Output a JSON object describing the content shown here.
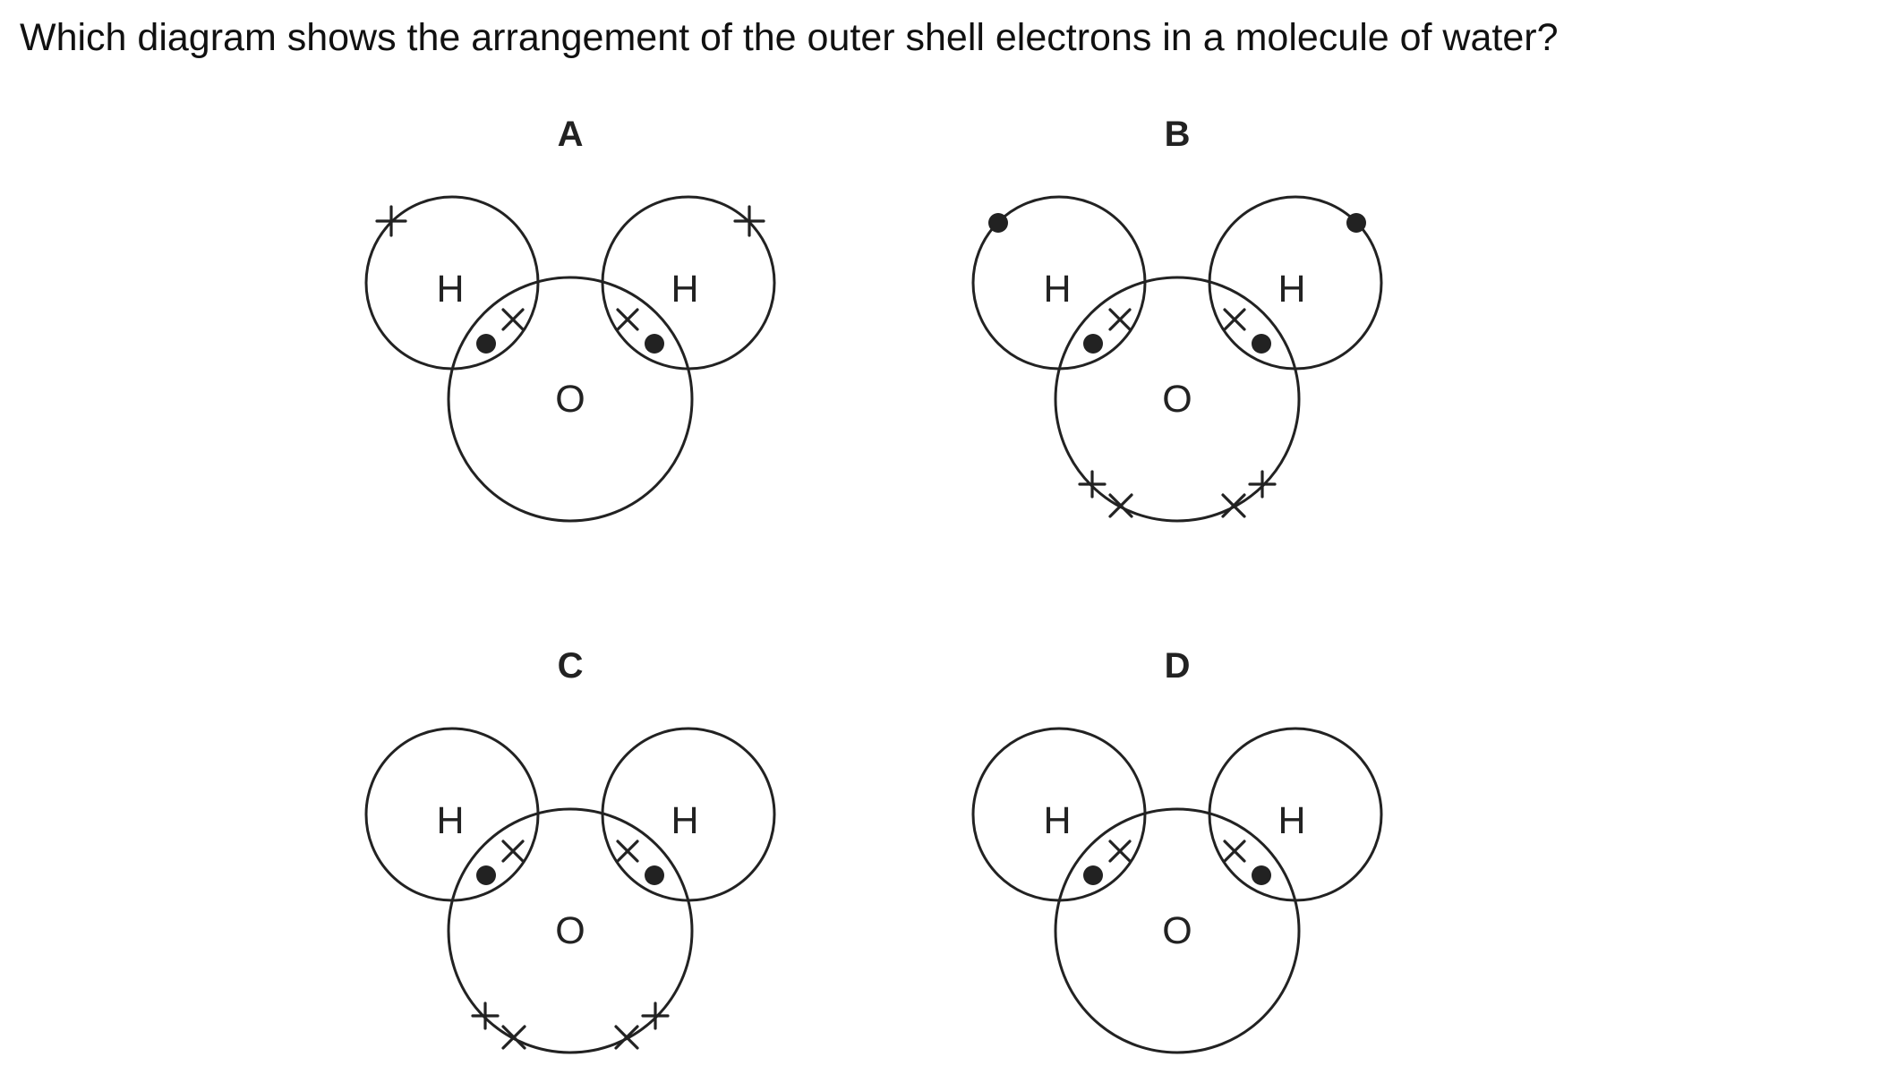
{
  "question": "Which diagram shows the arrangement of the outer shell electrons in a molecule of water?",
  "options": [
    {
      "letter": "A",
      "atom_labels": {
        "hydrogen_left": "H",
        "hydrogen_right": "H",
        "oxygen": "O"
      },
      "hydrogen_outer_electrons": "cross",
      "oxygen_lone_pairs": 0
    },
    {
      "letter": "B",
      "atom_labels": {
        "hydrogen_left": "H",
        "hydrogen_right": "H",
        "oxygen": "O"
      },
      "hydrogen_outer_electrons": "dot",
      "oxygen_lone_pairs": 2
    },
    {
      "letter": "C",
      "atom_labels": {
        "hydrogen_left": "H",
        "hydrogen_right": "H",
        "oxygen": "O"
      },
      "hydrogen_outer_electrons": "none",
      "oxygen_lone_pairs": 2
    },
    {
      "letter": "D",
      "atom_labels": {
        "hydrogen_left": "H",
        "hydrogen_right": "H",
        "oxygen": "O"
      },
      "hydrogen_outer_electrons": "none",
      "oxygen_lone_pairs": 0
    }
  ],
  "colors": {
    "ink": "#222222",
    "background": "#ffffff"
  }
}
